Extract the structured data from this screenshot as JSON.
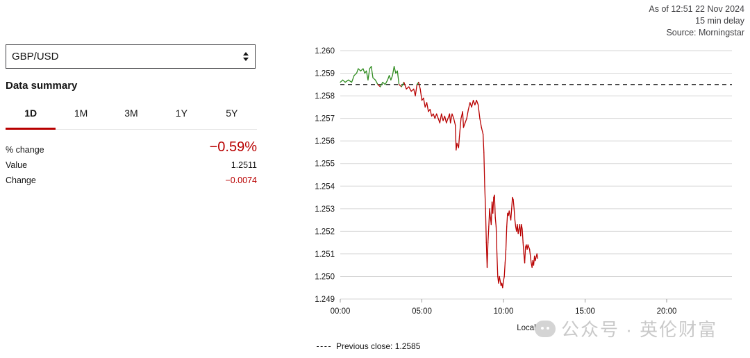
{
  "meta": {
    "as_of": "As of 12:51 22 Nov 2024",
    "delay": "15 min delay",
    "source": "Source: Morningstar"
  },
  "selector": {
    "value": "GBP/USD"
  },
  "summary": {
    "title": "Data summary",
    "tabs": [
      {
        "label": "1D",
        "active": true
      },
      {
        "label": "1M",
        "active": false
      },
      {
        "label": "3M",
        "active": false
      },
      {
        "label": "1Y",
        "active": false
      },
      {
        "label": "5Y",
        "active": false
      }
    ],
    "pct_change_label": "% change",
    "pct_change_value": "−0.59%",
    "value_label": "Value",
    "value_value": "1.2511",
    "change_label": "Change",
    "change_value": "−0.0074"
  },
  "colors": {
    "up": "#2e8b1e",
    "down": "#b80000",
    "grid": "#d6d6d6",
    "reference": "#141414"
  },
  "chart_data": {
    "type": "line",
    "xlabel": "Local Time",
    "ylabel": "",
    "x_unit": "hours since 00:00",
    "xlim": [
      0,
      24
    ],
    "ylim": [
      1.249,
      1.26
    ],
    "x_ticks": [
      {
        "value": 0,
        "label": "00:00"
      },
      {
        "value": 5,
        "label": "05:00"
      },
      {
        "value": 10,
        "label": "10:00"
      },
      {
        "value": 15,
        "label": "15:00"
      },
      {
        "value": 20,
        "label": "20:00"
      }
    ],
    "y_ticks": [
      "1.260",
      "1.259",
      "1.258",
      "1.257",
      "1.256",
      "1.255",
      "1.254",
      "1.253",
      "1.252",
      "1.251",
      "1.250",
      "1.249"
    ],
    "grid": true,
    "reference_line": {
      "value": 1.2585,
      "label": "Previous close: 1.2585"
    },
    "series": [
      {
        "points": [
          [
            0.0,
            1.2586
          ],
          [
            0.15,
            1.2587
          ],
          [
            0.3,
            1.2586
          ],
          [
            0.5,
            1.2587
          ],
          [
            0.7,
            1.2586
          ],
          [
            0.85,
            1.2589
          ],
          [
            1.0,
            1.259
          ],
          [
            1.1,
            1.2592
          ],
          [
            1.25,
            1.2591
          ],
          [
            1.4,
            1.2592
          ],
          [
            1.5,
            1.259
          ],
          [
            1.6,
            1.2591
          ],
          [
            1.7,
            1.2587
          ],
          [
            1.8,
            1.2592
          ],
          [
            1.9,
            1.2593
          ],
          [
            2.0,
            1.2588
          ],
          [
            2.15,
            1.2587
          ],
          [
            2.3,
            1.2585
          ],
          [
            2.45,
            1.2584
          ],
          [
            2.6,
            1.2586
          ],
          [
            2.75,
            1.2585
          ],
          [
            2.9,
            1.2587
          ],
          [
            3.0,
            1.2589
          ],
          [
            3.1,
            1.2587
          ],
          [
            3.2,
            1.2589
          ],
          [
            3.3,
            1.2593
          ],
          [
            3.4,
            1.259
          ],
          [
            3.5,
            1.2591
          ],
          [
            3.6,
            1.2585
          ],
          [
            3.75,
            1.2584
          ],
          [
            3.9,
            1.2586
          ],
          [
            4.05,
            1.2583
          ],
          [
            4.2,
            1.2584
          ],
          [
            4.35,
            1.2582
          ],
          [
            4.5,
            1.2583
          ],
          [
            4.6,
            1.258
          ],
          [
            4.7,
            1.2585
          ],
          [
            4.8,
            1.2586
          ],
          [
            4.9,
            1.2583
          ],
          [
            5.0,
            1.2578
          ],
          [
            5.1,
            1.2579
          ],
          [
            5.2,
            1.2575
          ],
          [
            5.3,
            1.2577
          ],
          [
            5.4,
            1.2573
          ],
          [
            5.5,
            1.2574
          ],
          [
            5.6,
            1.2571
          ],
          [
            5.7,
            1.2572
          ],
          [
            5.8,
            1.257
          ],
          [
            5.9,
            1.2572
          ],
          [
            6.0,
            1.257
          ],
          [
            6.1,
            1.2568
          ],
          [
            6.2,
            1.2572
          ],
          [
            6.3,
            1.2569
          ],
          [
            6.4,
            1.2571
          ],
          [
            6.5,
            1.2568
          ],
          [
            6.6,
            1.257
          ],
          [
            6.7,
            1.2572
          ],
          [
            6.75,
            1.2568
          ],
          [
            6.85,
            1.2572
          ],
          [
            6.95,
            1.257
          ],
          [
            7.05,
            1.2567
          ],
          [
            7.1,
            1.2556
          ],
          [
            7.15,
            1.2559
          ],
          [
            7.25,
            1.2557
          ],
          [
            7.3,
            1.2562
          ],
          [
            7.4,
            1.257
          ],
          [
            7.5,
            1.2573
          ],
          [
            7.55,
            1.2566
          ],
          [
            7.65,
            1.2568
          ],
          [
            7.75,
            1.257
          ],
          [
            7.85,
            1.2574
          ],
          [
            7.95,
            1.2577
          ],
          [
            8.05,
            1.2575
          ],
          [
            8.15,
            1.2578
          ],
          [
            8.25,
            1.2576
          ],
          [
            8.35,
            1.2578
          ],
          [
            8.45,
            1.2576
          ],
          [
            8.55,
            1.257
          ],
          [
            8.65,
            1.2566
          ],
          [
            8.75,
            1.2563
          ],
          [
            8.8,
            1.2555
          ],
          [
            8.85,
            1.254
          ],
          [
            8.9,
            1.253
          ],
          [
            8.95,
            1.2515
          ],
          [
            9.0,
            1.2504
          ],
          [
            9.05,
            1.2515
          ],
          [
            9.1,
            1.2522
          ],
          [
            9.15,
            1.253
          ],
          [
            9.2,
            1.2526
          ],
          [
            9.25,
            1.2523
          ],
          [
            9.3,
            1.2533
          ],
          [
            9.35,
            1.2528
          ],
          [
            9.4,
            1.2535
          ],
          [
            9.45,
            1.2536
          ],
          [
            9.5,
            1.2526
          ],
          [
            9.55,
            1.2522
          ],
          [
            9.6,
            1.251
          ],
          [
            9.65,
            1.25
          ],
          [
            9.7,
            1.2497
          ],
          [
            9.75,
            1.25
          ],
          [
            9.8,
            1.2498
          ],
          [
            9.85,
            1.2496
          ],
          [
            9.9,
            1.2497
          ],
          [
            9.95,
            1.2495
          ],
          [
            10.0,
            1.2498
          ],
          [
            10.05,
            1.25
          ],
          [
            10.1,
            1.2506
          ],
          [
            10.15,
            1.2512
          ],
          [
            10.2,
            1.2522
          ],
          [
            10.25,
            1.2528
          ],
          [
            10.3,
            1.2527
          ],
          [
            10.35,
            1.2529
          ],
          [
            10.45,
            1.2525
          ],
          [
            10.5,
            1.253
          ],
          [
            10.55,
            1.2535
          ],
          [
            10.6,
            1.2534
          ],
          [
            10.65,
            1.253
          ],
          [
            10.7,
            1.2525
          ],
          [
            10.75,
            1.2522
          ],
          [
            10.8,
            1.252
          ],
          [
            10.85,
            1.2523
          ],
          [
            10.9,
            1.2519
          ],
          [
            10.95,
            1.2521
          ],
          [
            11.0,
            1.2523
          ],
          [
            11.05,
            1.2518
          ],
          [
            11.1,
            1.2523
          ],
          [
            11.15,
            1.2521
          ],
          [
            11.2,
            1.2515
          ],
          [
            11.25,
            1.251
          ],
          [
            11.3,
            1.2506
          ],
          [
            11.35,
            1.2513
          ],
          [
            11.4,
            1.2514
          ],
          [
            11.45,
            1.2512
          ],
          [
            11.5,
            1.2514
          ],
          [
            11.55,
            1.2513
          ],
          [
            11.6,
            1.2512
          ],
          [
            11.7,
            1.2506
          ],
          [
            11.75,
            1.2504
          ],
          [
            11.8,
            1.2507
          ],
          [
            11.85,
            1.2505
          ],
          [
            11.9,
            1.2509
          ],
          [
            11.95,
            1.2507
          ],
          [
            12.05,
            1.251
          ],
          [
            12.1,
            1.2508
          ]
        ]
      }
    ]
  },
  "watermark": {
    "text": "公众号 · 英伦财富"
  }
}
